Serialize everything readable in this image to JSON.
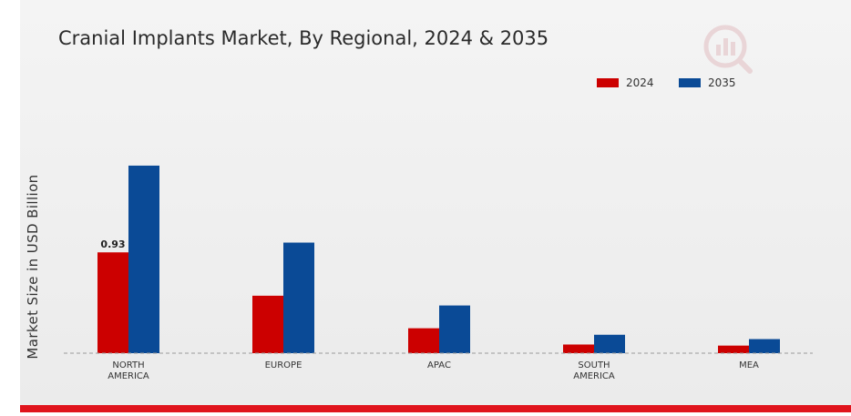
{
  "title": "Cranial Implants Market, By Regional, 2024 & 2035",
  "colors": {
    "2024": "#cc0000",
    "2035": "#0a4a96",
    "accent_bar": "#e0141c"
  },
  "logo_icon": "brand-logo-icon",
  "chart_data": {
    "type": "bar",
    "title": "Cranial Implants Market, By Regional, 2024 & 2035",
    "xlabel": "",
    "ylabel": "Market Size in USD Billion",
    "categories": [
      "NORTH AMERICA",
      "EUROPE",
      "APAC",
      "SOUTH AMERICA",
      "MEA"
    ],
    "category_lines": [
      [
        "NORTH",
        "AMERICA"
      ],
      [
        "EUROPE"
      ],
      [
        "APAC"
      ],
      [
        "SOUTH",
        "AMERICA"
      ],
      [
        "MEA"
      ]
    ],
    "series": [
      {
        "name": "2024",
        "color": "#cc0000",
        "values": [
          0.93,
          0.53,
          0.23,
          0.08,
          0.07
        ]
      },
      {
        "name": "2035",
        "color": "#0a4a96",
        "values": [
          1.73,
          1.02,
          0.44,
          0.17,
          0.13
        ]
      }
    ],
    "data_labels": [
      {
        "series": "2024",
        "category": "NORTH AMERICA",
        "text": "0.93"
      }
    ],
    "ylim": [
      0,
      2.25
    ],
    "grid": false,
    "baseline": "dashed",
    "legend_position": "top-right"
  }
}
